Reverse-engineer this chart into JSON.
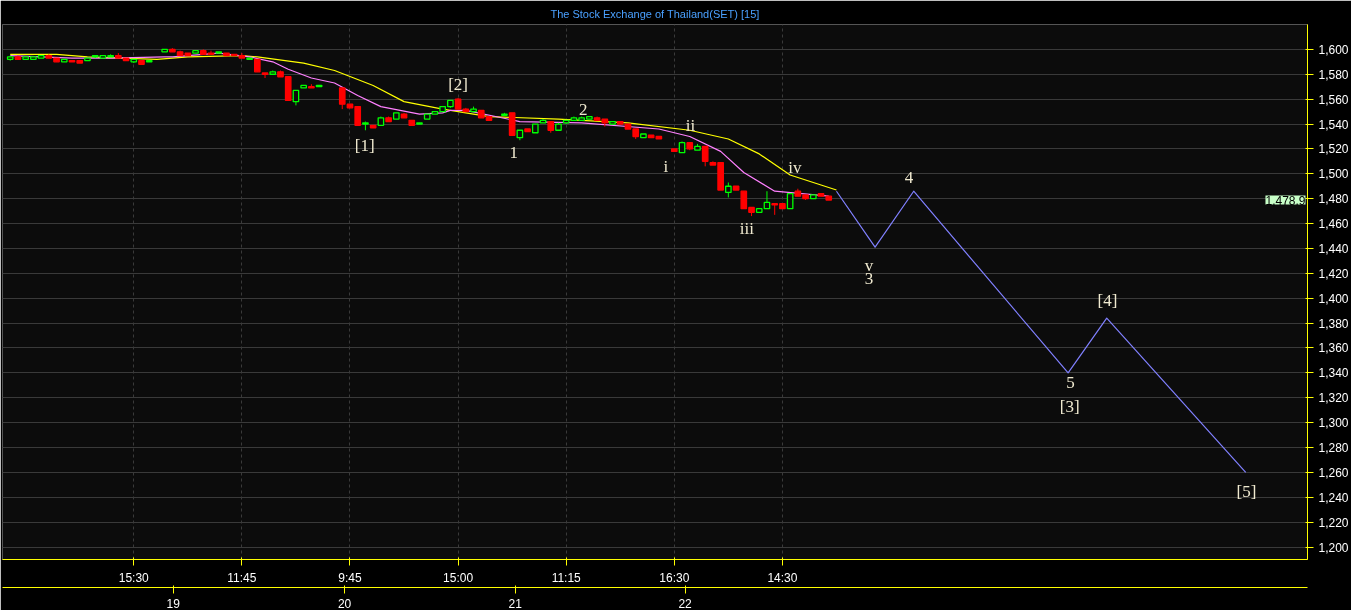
{
  "chart_data": {
    "type": "candlestick",
    "title": "The Stock Exchange of Thailand(SET) [15]",
    "categories": [
      null,
      null,
      null,
      null,
      null,
      null,
      null,
      null,
      null,
      null,
      null,
      null,
      null,
      null,
      null,
      null,
      "15:30",
      null,
      null,
      null,
      null,
      null,
      null,
      null,
      null,
      null,
      null,
      null,
      null,
      null,
      "11:45",
      null,
      null,
      null,
      null,
      null,
      null,
      null,
      null,
      null,
      null,
      null,
      null,
      null,
      "9:45",
      null,
      null,
      null,
      null,
      null,
      null,
      null,
      null,
      null,
      null,
      null,
      null,
      null,
      "15:00",
      null,
      null,
      null,
      null,
      null,
      null,
      null,
      null,
      null,
      null,
      null,
      null,
      null,
      "11:15",
      null,
      null,
      null,
      null,
      null,
      null,
      null,
      null,
      null,
      null,
      null,
      null,
      null,
      "16:30",
      null,
      null,
      null,
      null,
      null,
      null,
      null,
      null,
      null,
      null,
      null,
      null,
      null,
      "14:30",
      null,
      null,
      null,
      null,
      null,
      null,
      null,
      null,
      null,
      null,
      null,
      null,
      null,
      null,
      null,
      null,
      null,
      null,
      null,
      null,
      null,
      null,
      null,
      null,
      null,
      null,
      null,
      null,
      null,
      null,
      null,
      null,
      null,
      null,
      null,
      null,
      null,
      null,
      null,
      null,
      null,
      null,
      null,
      null,
      null,
      null,
      null,
      null,
      null,
      null,
      null,
      null,
      null,
      null,
      null,
      null,
      null,
      null,
      null,
      null,
      null,
      null,
      null,
      null,
      null,
      null,
      null
    ],
    "ohlc": [
      [
        1592,
        1595,
        1591,
        1594
      ],
      [
        1594,
        1595,
        1592,
        1592
      ],
      [
        1592,
        1594,
        1592,
        1594
      ],
      [
        1592,
        1594,
        1592,
        1594
      ],
      [
        1593,
        1595,
        1593,
        1595
      ],
      [
        1595,
        1596,
        1593,
        1593
      ],
      [
        1593,
        1593,
        1590,
        1590
      ],
      [
        1590,
        1592,
        1590,
        1592
      ],
      [
        1591,
        1591,
        1590,
        1590
      ],
      [
        1591,
        1591,
        1589,
        1589
      ],
      [
        1591,
        1593,
        1591,
        1593
      ],
      [
        1594,
        1595,
        1593,
        1595
      ],
      [
        1593,
        1595,
        1593,
        1595
      ],
      [
        1594,
        1596,
        1594,
        1595
      ],
      [
        1595,
        1597,
        1593,
        1593
      ],
      [
        1593,
        1593,
        1591,
        1591
      ],
      [
        1590,
        1592,
        1589,
        1592
      ],
      [
        1591,
        1591,
        1588,
        1588
      ],
      [
        1590,
        1591,
        1590,
        1591
      ],
      null,
      [
        1598,
        1600,
        1598,
        1600
      ],
      [
        1600,
        1601,
        1598,
        1598
      ],
      [
        1598,
        1599,
        1595,
        1595
      ],
      [
        1597,
        1597,
        1595,
        1595
      ],
      [
        1597,
        1599,
        1597,
        1599
      ],
      [
        1599,
        1600,
        1596,
        1596
      ],
      [
        1597,
        1599,
        1596,
        1596
      ],
      [
        1597,
        1598,
        1597,
        1598
      ],
      [
        1597,
        1597,
        1595,
        1595
      ],
      [
        1596,
        1596,
        1595,
        1595
      ],
      [
        1595,
        1597,
        1593,
        1593
      ],
      [
        1592,
        1593,
        1592,
        1593
      ],
      [
        1592,
        1592,
        1582,
        1582
      ],
      [
        1581,
        1581,
        1577,
        1580
      ],
      [
        1580,
        1583,
        1580,
        1582
      ],
      [
        1582,
        1583,
        1578,
        1578
      ],
      [
        1578,
        1578,
        1559,
        1559
      ],
      [
        1558,
        1567,
        1555,
        1567
      ],
      [
        1569,
        1571,
        1569,
        1571
      ],
      [
        1570,
        1572,
        1569,
        1569
      ],
      [
        1570,
        1571,
        1570,
        1571
      ],
      null,
      null,
      [
        1569,
        1569,
        1552,
        1556
      ],
      [
        1556,
        1556,
        1553,
        1553
      ],
      [
        1554,
        1554,
        1539,
        1539
      ],
      [
        1540,
        1542,
        1535,
        1541
      ],
      [
        1539,
        1539,
        1537,
        1537
      ],
      [
        1539,
        1546,
        1539,
        1545
      ],
      [
        1545,
        1546,
        1542,
        1542
      ],
      [
        1544,
        1549,
        1544,
        1549
      ],
      [
        1548,
        1549,
        1545,
        1545
      ],
      [
        1543,
        1543,
        1539,
        1539
      ],
      [
        1540,
        1541,
        1540,
        1541
      ],
      [
        1544,
        1548,
        1544,
        1548
      ],
      [
        1548,
        1550,
        1548,
        1550
      ],
      [
        1550,
        1554,
        1550,
        1554
      ],
      [
        1554,
        1559,
        1553,
        1559
      ],
      [
        1560,
        1561,
        1552,
        1552
      ],
      [
        1552,
        1553,
        1550,
        1550
      ],
      [
        1550,
        1554,
        1550,
        1552
      ],
      [
        1551,
        1551,
        1545,
        1545
      ],
      [
        1546,
        1546,
        1543,
        1543
      ],
      null,
      [
        1547,
        1549,
        1547,
        1548
      ],
      [
        1549,
        1549,
        1531,
        1531
      ],
      [
        1529,
        1535,
        1527,
        1535
      ],
      [
        1536,
        1536,
        1534,
        1534
      ],
      [
        1533,
        1540,
        1533,
        1540
      ],
      [
        1541,
        1544,
        1541,
        1543
      ],
      [
        1542,
        1542,
        1533,
        1535
      ],
      [
        1535,
        1541,
        1535,
        1540
      ],
      [
        1541,
        1543,
        1540,
        1543
      ],
      [
        1543,
        1546,
        1543,
        1545
      ],
      [
        1543,
        1546,
        1543,
        1545
      ],
      [
        1544,
        1546,
        1544,
        1546
      ],
      [
        1545,
        1546,
        1543,
        1543
      ],
      [
        1544,
        1544,
        1538,
        1541
      ],
      [
        1540,
        1542,
        1540,
        1542
      ],
      [
        1542,
        1542,
        1540,
        1540
      ],
      [
        1540,
        1540,
        1536,
        1536
      ],
      [
        1536,
        1536,
        1528,
        1530
      ],
      [
        1529,
        1532,
        1529,
        1532
      ],
      [
        1531,
        1531,
        1529,
        1529
      ],
      [
        1530,
        1530,
        1528,
        1528
      ],
      null,
      [
        1520,
        1520,
        1518,
        1518
      ],
      [
        1517,
        1526,
        1517,
        1525
      ],
      [
        1525,
        1525,
        1519,
        1520
      ],
      [
        1519,
        1524,
        1519,
        1522
      ],
      [
        1522,
        1522,
        1506,
        1510
      ],
      [
        1509,
        1510,
        1507,
        1507
      ],
      [
        1509,
        1509,
        1487,
        1487
      ],
      [
        1485,
        1493,
        1481,
        1490
      ],
      [
        1490,
        1490,
        1487,
        1487
      ],
      [
        1486,
        1486,
        1472,
        1472
      ],
      [
        1473,
        1473,
        1466,
        1469
      ],
      [
        1469,
        1472,
        1469,
        1472
      ],
      [
        1472,
        1486,
        1472,
        1477
      ],
      [
        1476,
        1476,
        1467,
        1475
      ],
      [
        1476,
        1476,
        1472,
        1472
      ],
      [
        1472,
        1484,
        1472,
        1484
      ],
      [
        1486,
        1488,
        1482,
        1482
      ],
      [
        1483,
        1483,
        1479,
        1480
      ],
      [
        1480,
        1483,
        1480,
        1483
      ],
      [
        1484,
        1484,
        1482,
        1482
      ],
      [
        1482,
        1482,
        1478.9,
        1478.9
      ],
      null,
      null,
      null,
      null,
      null,
      null,
      null,
      null,
      null,
      null,
      null,
      null,
      null,
      null,
      null,
      null,
      null,
      null,
      null,
      null,
      null,
      null,
      null,
      null,
      null,
      null,
      null,
      null,
      null,
      null,
      null,
      null,
      null,
      null,
      null,
      null,
      null,
      null,
      null,
      null,
      null,
      null,
      null,
      null,
      null,
      null,
      null,
      null,
      null,
      null,
      null,
      null,
      null,
      null,
      null,
      null,
      null,
      null,
      null,
      null,
      null
    ],
    "colors": [
      "#00ff00",
      "#ff0000",
      "#00ff00",
      "#00ff00",
      "#00ff00",
      "#ff0000",
      "#ff0000",
      "#00ff00",
      "#ff0000",
      "#ff0000",
      "#00ff00",
      "#00ff00",
      "#00ff00",
      "#00ff00",
      "#ff0000",
      "#ff0000",
      "#00ff00",
      "#ff0000",
      "#00ff00",
      null,
      "#00ff00",
      "#ff0000",
      "#ff0000",
      "#ff0000",
      "#00ff00",
      "#ff0000",
      "#ff0000",
      "#00ff00",
      "#ff0000",
      "#ff0000",
      "#ff0000",
      "#00ff00",
      "#ff0000",
      "#ff0000",
      "#00ff00",
      "#ff0000",
      "#ff0000",
      "#00ff00",
      "#00ff00",
      "#ff0000",
      "#00ff00",
      null,
      null,
      "#ff0000",
      "#ff0000",
      "#ff0000",
      "#00ff00",
      "#ff0000",
      "#00ff00",
      "#ff0000",
      "#00ff00",
      "#ff0000",
      "#ff0000",
      "#00ff00",
      "#00ff00",
      "#00ff00",
      "#00ff00",
      "#00ff00",
      "#ff0000",
      "#ff0000",
      "#00ff00",
      "#ff0000",
      "#ff0000",
      null,
      "#00ff00",
      "#ff0000",
      "#00ff00",
      "#ff0000",
      "#00ff00",
      "#00ff00",
      "#ff0000",
      "#00ff00",
      "#00ff00",
      "#00ff00",
      "#00ff00",
      "#00ff00",
      "#ff0000",
      "#ff0000",
      "#00ff00",
      "#ff0000",
      "#ff0000",
      "#ff0000",
      "#00ff00",
      "#ff0000",
      "#ff0000",
      null,
      "#ff0000",
      "#00ff00",
      "#ff0000",
      "#00ff00",
      "#ff0000",
      "#ff0000",
      "#ff0000",
      "#00ff00",
      "#ff0000",
      "#ff0000",
      "#ff0000",
      "#00ff00",
      "#00ff00",
      "#ff0000",
      "#ff0000",
      "#00ff00",
      "#ff0000",
      "#ff0000",
      "#00ff00",
      "#ff0000",
      "#ff0000",
      null,
      null,
      null,
      null,
      null,
      null,
      null,
      null,
      null,
      null,
      null,
      null,
      null,
      null,
      null,
      null,
      null,
      null,
      null,
      null,
      null,
      null,
      null,
      null,
      null,
      null,
      null,
      null,
      null,
      null,
      null,
      null,
      null,
      null,
      null,
      null,
      null,
      null,
      null,
      null,
      null,
      null,
      null,
      null,
      null,
      null,
      null,
      null,
      null,
      null,
      null,
      null,
      null,
      null,
      null,
      null,
      null,
      null,
      null,
      null,
      null
    ],
    "series": [
      {
        "type": "line",
        "color": "#ffff00",
        "values": [
          1596,
          null,
          null,
          null,
          null,
          null,
          1596,
          null,
          null,
          null,
          1594,
          null,
          null,
          null,
          null,
          null,
          null,
          null,
          null,
          1592,
          null,
          null,
          null,
          1594,
          null,
          null,
          null,
          null,
          null,
          null,
          1595,
          null,
          1594,
          null,
          null,
          null,
          null,
          null,
          1589,
          null,
          null,
          null,
          1583,
          null,
          null,
          null,
          null,
          1571,
          null,
          null,
          null,
          1558,
          null,
          null,
          null,
          null,
          1552,
          null,
          null,
          null,
          null,
          null,
          1546,
          null,
          null,
          null,
          null,
          null,
          null,
          null,
          null,
          1544,
          null,
          null,
          null,
          null,
          null,
          null,
          null,
          null,
          1541,
          null,
          null,
          null,
          null,
          null,
          null,
          null,
          1535,
          null,
          null,
          null,
          null,
          1528,
          null,
          null,
          null,
          1516,
          null,
          null,
          null,
          1499,
          null,
          null,
          null,
          null,
          null,
          1487,
          null,
          null,
          null,
          null,
          null,
          null,
          null,
          null,
          null,
          null,
          null,
          null,
          null,
          null,
          null,
          null,
          null,
          null,
          null,
          null,
          null,
          null,
          null,
          null,
          null,
          null,
          null,
          null,
          null,
          null,
          null,
          null,
          null,
          null,
          null,
          null,
          null,
          null,
          null,
          null,
          null,
          null,
          null,
          null,
          null,
          null,
          null,
          null,
          null,
          null,
          null,
          null,
          null,
          null,
          null,
          null,
          null,
          null,
          null,
          null
        ]
      },
      {
        "type": "line",
        "color": "#ff80ff",
        "values": [
          1595,
          null,
          null,
          null,
          null,
          null,
          null,
          null,
          1593,
          null,
          null,
          null,
          null,
          1593,
          null,
          null,
          null,
          null,
          null,
          null,
          1594,
          1594,
          null,
          null,
          null,
          null,
          null,
          1597,
          null,
          null,
          null,
          1594,
          null,
          null,
          1590,
          null,
          1584,
          null,
          null,
          1577,
          null,
          null,
          1573,
          null,
          null,
          1563,
          null,
          null,
          1554,
          null,
          null,
          null,
          null,
          1548,
          null,
          null,
          1549,
          1551,
          null,
          1551,
          null,
          null,
          null,
          null,
          null,
          null,
          1542,
          null,
          null,
          null,
          null,
          null,
          null,
          null,
          1541,
          null,
          null,
          null,
          null,
          null,
          null,
          null,
          null,
          null,
          1536,
          null,
          null,
          null,
          1530,
          null,
          null,
          null,
          1518,
          null,
          null,
          1501,
          null,
          null,
          null,
          1486,
          null,
          null,
          null,
          null,
          null,
          null,
          1482,
          null,
          null,
          null,
          null,
          null,
          null,
          null,
          null,
          null,
          null,
          null,
          null,
          null,
          null,
          null,
          null,
          null,
          null,
          null,
          null,
          null,
          null,
          null,
          null,
          null,
          null,
          null,
          null,
          null,
          null,
          null,
          null,
          null,
          null,
          null,
          null,
          null,
          null,
          null,
          null,
          null,
          null,
          null,
          null,
          null,
          null,
          null,
          null,
          null,
          null,
          null,
          null,
          null,
          null,
          null,
          null,
          null,
          null,
          null,
          null,
          null
        ]
      },
      {
        "type": "line",
        "color": "#8080ff",
        "values": [
          null,
          null,
          null,
          null,
          null,
          null,
          null,
          null,
          null,
          null,
          null,
          null,
          null,
          null,
          null,
          null,
          null,
          null,
          null,
          null,
          null,
          null,
          null,
          null,
          null,
          null,
          null,
          null,
          null,
          null,
          null,
          null,
          null,
          null,
          null,
          null,
          null,
          null,
          null,
          null,
          null,
          null,
          null,
          null,
          null,
          null,
          null,
          null,
          null,
          null,
          null,
          null,
          null,
          null,
          null,
          null,
          null,
          null,
          null,
          null,
          null,
          null,
          null,
          null,
          null,
          null,
          null,
          null,
          null,
          null,
          null,
          null,
          null,
          null,
          null,
          null,
          null,
          null,
          null,
          null,
          null,
          null,
          null,
          null,
          null,
          null,
          null,
          null,
          null,
          null,
          null,
          null,
          null,
          null,
          null,
          null,
          null,
          null,
          null,
          null,
          null,
          null,
          null,
          null,
          null,
          null,
          null,
          1486,
          null,
          null,
          null,
          null,
          1441,
          null,
          null,
          null,
          null,
          1486,
          null,
          null,
          null,
          null,
          null,
          null,
          null,
          null,
          null,
          null,
          null,
          null,
          null,
          null,
          null,
          null,
          null,
          null,
          null,
          1340,
          null,
          null,
          null,
          null,
          1384,
          null,
          null,
          null,
          null,
          null,
          null,
          null,
          null,
          null,
          null,
          null,
          null,
          null,
          null,
          null,
          null,
          null,
          1260,
          null,
          null,
          null,
          null,
          null,
          null,
          null
        ]
      }
    ],
    "annotations": [
      "[1]",
      "[2]",
      "1",
      "2",
      "i",
      "ii",
      "iii",
      "iv",
      "v",
      "3",
      "4",
      "5",
      "[3]",
      "[4]",
      "[5]",
      "19",
      "20",
      "21",
      "22",
      "1,478.9"
    ],
    "ylim": [
      1190,
      1620
    ],
    "yticks": [
      {
        "value": 1200,
        "label": "1,200"
      },
      {
        "value": 1220,
        "label": "1,220"
      },
      {
        "value": 1240,
        "label": "1,240"
      },
      {
        "value": 1260,
        "label": "1,260"
      },
      {
        "value": 1280,
        "label": "1,280"
      },
      {
        "value": 1300,
        "label": "1,300"
      },
      {
        "value": 1320,
        "label": "1,320"
      },
      {
        "value": 1340,
        "label": "1,340"
      },
      {
        "value": 1360,
        "label": "1,360"
      },
      {
        "value": 1380,
        "label": "1,380"
      },
      {
        "value": 1400,
        "label": "1,400"
      },
      {
        "value": 1420,
        "label": "1,420"
      },
      {
        "value": 1440,
        "label": "1,440"
      },
      {
        "value": 1460,
        "label": "1,460"
      },
      {
        "value": 1480,
        "label": "1,480"
      },
      {
        "value": 1500,
        "label": "1,500"
      },
      {
        "value": 1520,
        "label": "1,520"
      },
      {
        "value": 1540,
        "label": "1,540"
      },
      {
        "value": 1560,
        "label": "1,560"
      },
      {
        "value": 1580,
        "label": "1,580"
      },
      {
        "value": 1600,
        "label": "1,600"
      }
    ],
    "grid": true
  }
}
